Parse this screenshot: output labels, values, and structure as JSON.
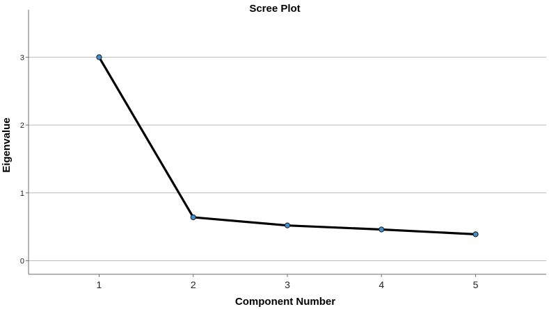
{
  "chart_data": {
    "type": "line",
    "title": "Scree Plot",
    "xlabel": "Component Number",
    "ylabel": "Eigenvalue",
    "x": [
      1,
      2,
      3,
      4,
      5
    ],
    "y": [
      3.0,
      0.64,
      0.52,
      0.46,
      0.39
    ],
    "x_tick_labels": [
      "1",
      "2",
      "3",
      "4",
      "5"
    ],
    "y_tick_labels": [
      "0",
      "1",
      "2",
      "3"
    ],
    "y_ticks": [
      0,
      1,
      2,
      3
    ],
    "ylim": [
      -0.2,
      3.7
    ],
    "xlim": [
      0.25,
      5.75
    ],
    "grid": "horizontal",
    "legend": "none",
    "line_color": "#000000",
    "marker_color": "#3E8FD1",
    "marker_edge_color": "#1A1A1A",
    "grid_color": "#B9B9B9",
    "axis_color": "#6E6E6E"
  }
}
